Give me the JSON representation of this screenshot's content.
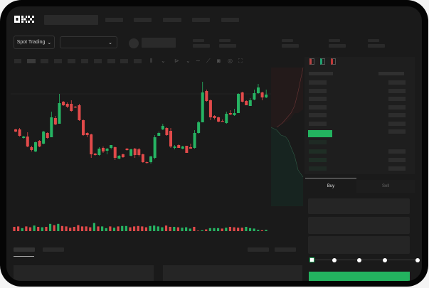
{
  "header": {
    "logo": "OKX"
  },
  "toolbar": {
    "market_type": "Spot Trading"
  },
  "trade": {
    "buy_tab": "Buy",
    "sell_tab": "Sell"
  },
  "colors": {
    "up": "#26b463",
    "down": "#e24a4a",
    "accent": "#23b35f",
    "background": "#1a1a1a"
  },
  "chart_data": {
    "type": "candlestick",
    "candles_ohlc": [
      [
        58,
        59,
        54,
        55
      ],
      [
        58,
        60,
        48,
        49
      ],
      [
        46,
        49,
        45,
        48
      ],
      [
        48,
        54,
        33,
        34
      ],
      [
        33,
        35,
        27,
        29
      ],
      [
        27,
        41,
        26,
        40
      ],
      [
        42,
        43,
        33,
        34
      ],
      [
        38,
        56,
        37,
        55
      ],
      [
        53,
        54,
        45,
        46
      ],
      [
        47,
        83,
        47,
        75
      ],
      [
        74,
        77,
        64,
        65
      ],
      [
        66,
        108,
        66,
        95
      ],
      [
        97,
        98,
        91,
        92
      ],
      [
        94,
        96,
        88,
        90
      ],
      [
        94,
        99,
        83,
        84
      ],
      [
        90,
        91,
        88,
        89
      ],
      [
        92,
        94,
        70,
        71
      ],
      [
        71,
        72,
        49,
        50
      ],
      [
        53,
        54,
        47,
        50
      ],
      [
        51,
        52,
        18,
        23
      ],
      [
        24,
        25,
        21,
        22
      ],
      [
        22,
        33,
        21,
        31
      ],
      [
        32,
        34,
        25,
        27
      ],
      [
        28,
        32,
        23,
        31
      ],
      [
        32,
        36,
        30,
        36
      ],
      [
        33,
        34,
        15,
        18
      ],
      [
        17,
        22,
        16,
        21
      ],
      [
        23,
        24,
        18,
        19
      ],
      [
        31,
        32,
        28,
        29
      ],
      [
        21,
        31,
        20,
        30
      ],
      [
        31,
        32,
        18,
        22
      ],
      [
        30,
        32,
        20,
        22
      ],
      [
        23,
        24,
        11,
        12
      ],
      [
        12,
        13,
        10,
        11
      ],
      [
        12,
        21,
        10,
        20
      ],
      [
        18,
        50,
        16,
        47
      ],
      [
        49,
        55,
        49,
        53
      ],
      [
        58,
        66,
        57,
        63
      ],
      [
        60,
        61,
        49,
        50
      ],
      [
        56,
        60,
        32,
        34
      ],
      [
        32,
        36,
        30,
        34
      ],
      [
        36,
        37,
        32,
        32
      ],
      [
        31,
        35,
        30,
        34
      ],
      [
        35,
        35,
        25,
        25
      ],
      [
        33,
        38,
        31,
        31
      ],
      [
        32,
        57,
        31,
        53
      ],
      [
        53,
        70,
        52,
        68
      ],
      [
        68,
        125,
        68,
        110
      ],
      [
        112,
        114,
        97,
        98
      ],
      [
        99,
        100,
        71,
        75
      ],
      [
        77,
        78,
        72,
        74
      ],
      [
        75,
        76,
        68,
        69
      ],
      [
        70,
        72,
        69,
        69
      ],
      [
        67,
        83,
        66,
        80
      ],
      [
        81,
        85,
        78,
        79
      ],
      [
        78,
        87,
        77,
        81
      ],
      [
        81,
        109,
        81,
        108
      ],
      [
        110,
        111,
        96,
        97
      ],
      [
        98,
        99,
        92,
        92
      ],
      [
        91,
        102,
        91,
        99
      ],
      [
        100,
        114,
        99,
        109
      ],
      [
        109,
        122,
        108,
        117
      ],
      [
        110,
        111,
        99,
        103
      ],
      [
        103,
        114,
        102,
        107
      ]
    ],
    "volume": [
      10,
      11,
      7,
      11,
      9,
      13,
      10,
      9,
      10,
      17,
      14,
      17,
      12,
      11,
      8,
      10,
      14,
      11,
      11,
      9,
      19,
      11,
      11,
      7,
      11,
      8,
      11,
      12,
      12,
      9,
      11,
      12,
      11,
      9,
      12,
      13,
      11,
      9,
      13,
      10,
      10,
      9,
      8,
      9,
      6,
      10,
      1,
      2,
      4,
      7,
      7,
      7,
      6,
      8,
      10,
      9,
      8,
      8,
      10,
      7,
      6,
      3,
      2,
      3
    ],
    "volume_up": [
      0,
      0,
      1,
      0,
      0,
      1,
      0,
      1,
      0,
      1,
      0,
      1,
      0,
      0,
      0,
      0,
      0,
      0,
      0,
      0,
      1,
      0,
      1,
      1,
      0,
      1,
      0,
      1,
      1,
      0,
      0,
      0,
      0,
      0,
      1,
      1,
      1,
      1,
      0,
      0,
      1,
      0,
      1,
      1,
      1,
      0,
      0,
      1,
      0,
      1,
      1,
      1,
      0,
      1,
      0,
      0,
      0,
      0,
      1,
      1,
      1,
      1,
      0,
      1
    ],
    "grid": false
  }
}
